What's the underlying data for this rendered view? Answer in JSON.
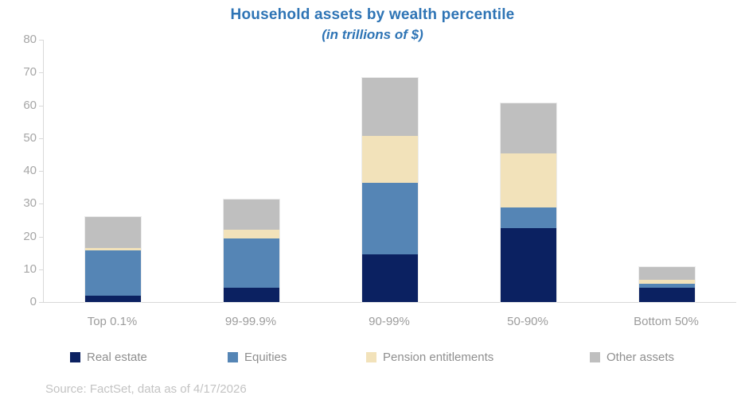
{
  "title": "Household assets by wealth percentile",
  "subtitle": "(in trillions of $)",
  "source": "Source: FactSet, data as of 4/17/2026",
  "colors": {
    "title_blue": "#2e74b5",
    "axis_gray": "#d9d9d9",
    "tick_text_gray": "#a6a6a6",
    "real_estate_navy": "#0b2161",
    "equities_blue": "#5585b5",
    "pension_cream": "#f2e2ba",
    "other_gray": "#bfbfbf"
  },
  "chart_data": {
    "type": "bar",
    "stacked": true,
    "title": "Household assets by wealth percentile",
    "subtitle": "(in trillions of $)",
    "xlabel": "",
    "ylabel": "",
    "categories": [
      "Top 0.1%",
      "99-99.9%",
      "90-99%",
      "50-90%",
      "Bottom 50%"
    ],
    "series": [
      {
        "name": "Real estate",
        "color": "#0b2161",
        "values": [
          2.0,
          4.4,
          14.5,
          22.5,
          4.4
        ]
      },
      {
        "name": "Equities",
        "color": "#5585b5",
        "values": [
          13.8,
          15.0,
          21.9,
          6.4,
          1.1
        ]
      },
      {
        "name": "Pension entitlements",
        "color": "#f2e2ba",
        "values": [
          0.6,
          2.7,
          14.3,
          16.5,
          1.4
        ]
      },
      {
        "name": "Other assets",
        "color": "#bfbfbf",
        "values": [
          9.5,
          9.1,
          17.7,
          15.1,
          3.7
        ]
      }
    ],
    "totals": [
      25.9,
      31.2,
      68.4,
      60.5,
      10.6
    ],
    "ylim": [
      0,
      80
    ],
    "yticks": [
      0,
      10,
      20,
      30,
      40,
      50,
      60,
      70,
      80
    ],
    "grid": false,
    "legend_position": "bottom"
  }
}
